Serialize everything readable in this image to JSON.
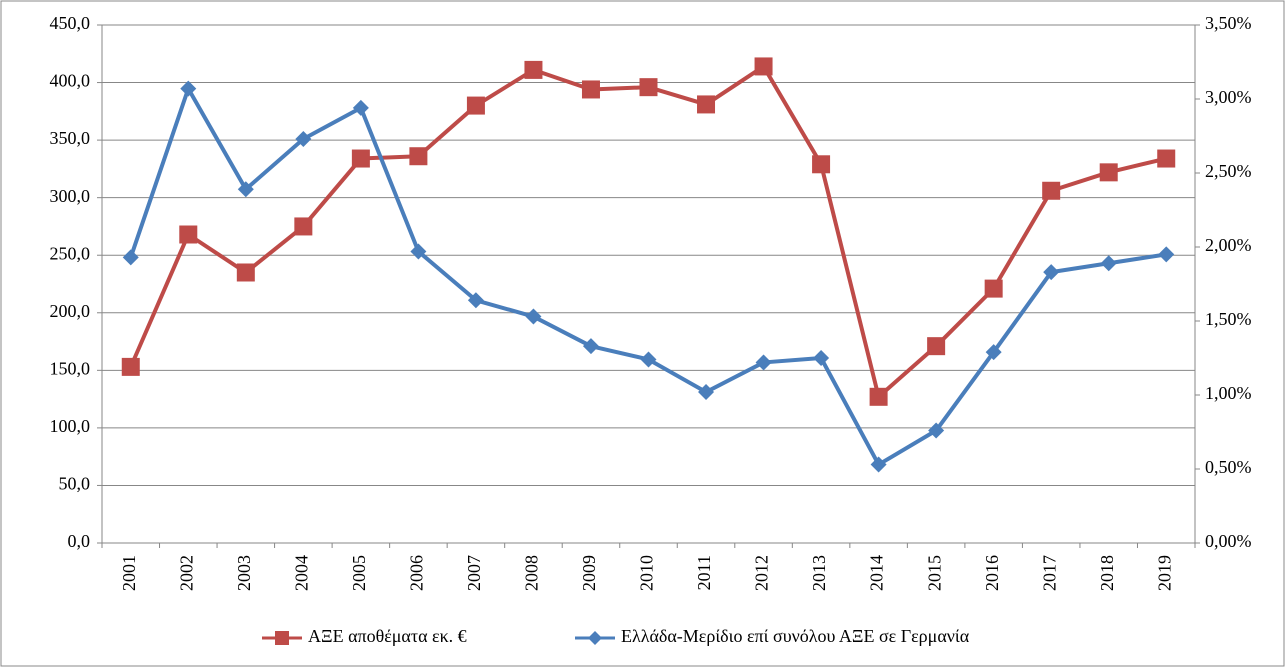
{
  "chart_data": {
    "type": "line",
    "categories": [
      "2001",
      "2002",
      "2003",
      "2004",
      "2005",
      "2006",
      "2007",
      "2008",
      "2009",
      "2010",
      "2011",
      "2012",
      "2013",
      "2014",
      "2015",
      "2016",
      "2017",
      "2018",
      "2019"
    ],
    "series": [
      {
        "name": "ΑΞΕ αποθέματα εκ. €",
        "color": "#be4b48",
        "marker": "square",
        "values": [
          153,
          268,
          235,
          275,
          334,
          336,
          380,
          411,
          394,
          396,
          381,
          414,
          329,
          127,
          171,
          221,
          306,
          322,
          334
        ]
      },
      {
        "name": "Ελλάδα-Μερίδιο επί συνόλου ΑΞΕ σε Γερμανία",
        "color": "#4a7ebb",
        "marker": "diamond",
        "axis": "y2",
        "values": [
          1.93,
          3.07,
          2.39,
          2.73,
          2.94,
          1.97,
          1.64,
          1.53,
          1.33,
          1.24,
          1.02,
          1.22,
          1.25,
          0.53,
          0.76,
          1.29,
          1.83,
          1.89,
          1.95
        ]
      }
    ],
    "ylim": [
      0,
      450
    ],
    "yticks": [
      {
        "value": 0,
        "label": "0,0"
      },
      {
        "value": 50,
        "label": "50,0"
      },
      {
        "value": 100,
        "label": "100,0"
      },
      {
        "value": 150,
        "label": "150,0"
      },
      {
        "value": 200,
        "label": "200,0"
      },
      {
        "value": 250,
        "label": "250,0"
      },
      {
        "value": 300,
        "label": "300,0"
      },
      {
        "value": 350,
        "label": "350,0"
      },
      {
        "value": 400,
        "label": "400,0"
      },
      {
        "value": 450,
        "label": "450,0"
      }
    ],
    "y2lim": [
      0,
      3.5
    ],
    "y2ticks": [
      {
        "value": 0,
        "label": "0,00%"
      },
      {
        "value": 0.5,
        "label": "0,50%"
      },
      {
        "value": 1,
        "label": "1,00%"
      },
      {
        "value": 1.5,
        "label": "1,50%"
      },
      {
        "value": 2,
        "label": "2,00%"
      },
      {
        "value": 2.5,
        "label": "2,50%"
      },
      {
        "value": 3,
        "label": "3,00%"
      },
      {
        "value": 3.5,
        "label": "3,50%"
      }
    ],
    "grid": true,
    "legend": "bottom"
  }
}
